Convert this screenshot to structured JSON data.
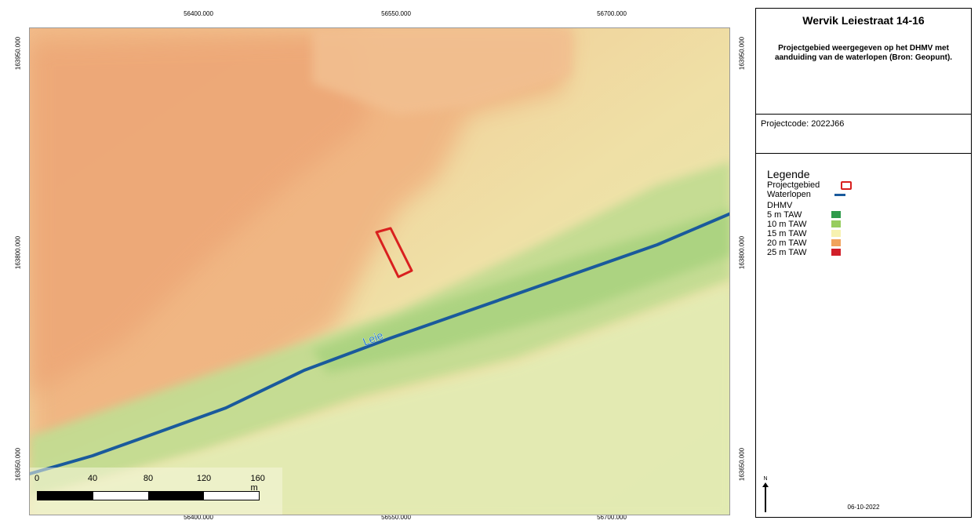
{
  "coordinates": {
    "x_ticks": [
      "56400.000",
      "56550.000",
      "56700.000"
    ],
    "y_ticks": [
      "163950.000",
      "163800.000",
      "163650.000"
    ]
  },
  "map": {
    "river_label": "Leie",
    "colors": {
      "high_ground": "#f0b07a",
      "mid_ground": "#eed39a",
      "low_ground": "#d8e6a8",
      "floodplain": "#b8da8c",
      "river": "#1a5a9c",
      "river_label": "#2a7cc8",
      "project_outline": "#d9201f"
    }
  },
  "scalebar": {
    "labels": [
      "0",
      "40",
      "80",
      "120",
      "160 m"
    ]
  },
  "panel": {
    "title": "Wervik Leiestraat 14-16",
    "subtitle": "Projectgebied weergegeven op het DHMV met aanduiding van de waterlopen (Bron: Geopunt).",
    "project_code": "Projectcode: 2022J66",
    "legend": {
      "title": "Legende",
      "project_area": "Projectgebied",
      "waterways": "Waterlopen",
      "dhmv_title": "DHMV",
      "classes": [
        {
          "label": "5 m TAW",
          "color": "#2e9a4a"
        },
        {
          "label": "10 m TAW",
          "color": "#97cd5e"
        },
        {
          "label": "15 m TAW",
          "color": "#f7f2b0"
        },
        {
          "label": "20 m TAW",
          "color": "#f1a35c"
        },
        {
          "label": "25 m TAW",
          "color": "#d11f2a"
        }
      ]
    },
    "north_label": "N",
    "date": "06-10-2022"
  }
}
